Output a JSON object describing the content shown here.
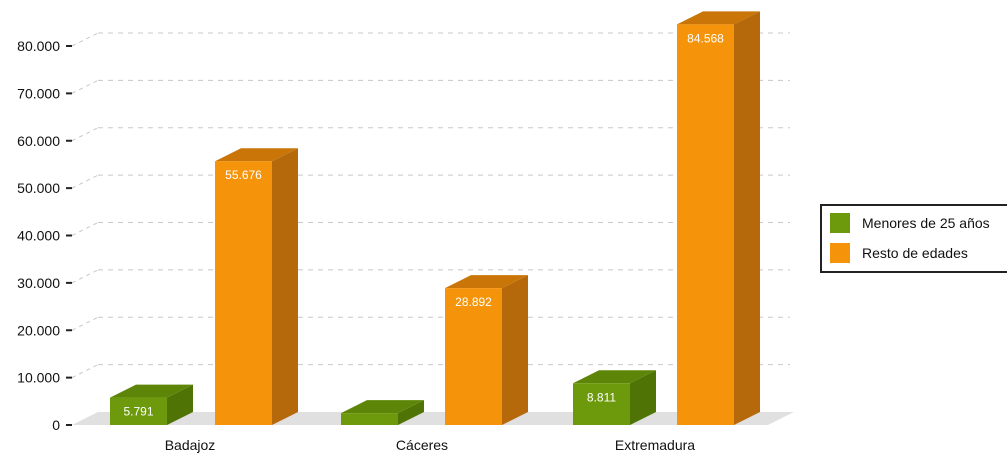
{
  "chart_data": {
    "type": "bar",
    "categories": [
      "Badajoz",
      "Cáceres",
      "Extremadura"
    ],
    "series": [
      {
        "name": "Menores de 25 años",
        "values": [
          5791,
          2500,
          8811
        ],
        "labels": [
          "5.791",
          "",
          "8.811"
        ],
        "color": "#6d9a0c",
        "side_color": "#4f7305",
        "top_color": "#5d8508"
      },
      {
        "name": "Resto de edades",
        "values": [
          55676,
          28892,
          84568
        ],
        "labels": [
          "55.676",
          "28.892",
          "84.568"
        ],
        "color": "#f5940a",
        "side_color": "#b5690a",
        "top_color": "#c97508"
      }
    ],
    "ylim": [
      0,
      80000
    ],
    "yticks": [
      0,
      10000,
      20000,
      30000,
      40000,
      50000,
      60000,
      70000,
      80000
    ],
    "ytick_labels": [
      "0",
      "10.000",
      "20.000",
      "30.000",
      "40.000",
      "50.000",
      "60.000",
      "70.000",
      "80.000"
    ],
    "grid": true,
    "legend_position": "right",
    "title": "",
    "xlabel": "",
    "ylabel": ""
  }
}
